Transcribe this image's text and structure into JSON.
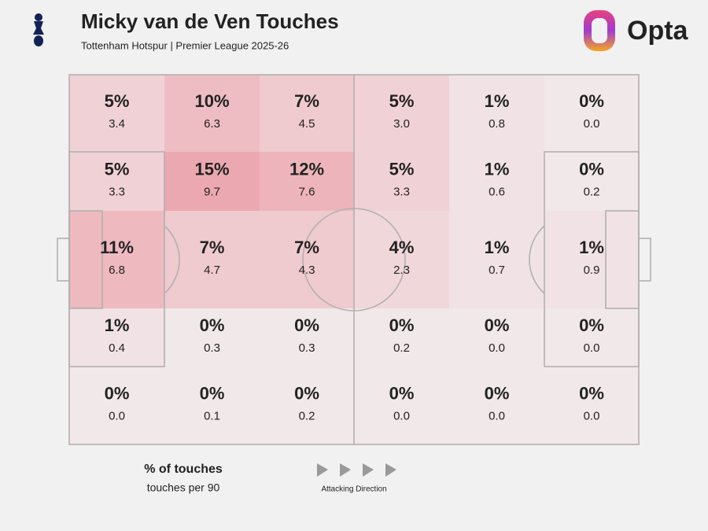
{
  "chart_data": {
    "type": "heatmap",
    "title": "Micky van de Ven Touches",
    "subtitle": "Tottenham Hotspur | Premier League 2025-26",
    "brand": "Opta",
    "color": "#e8707e",
    "values": [
      [
        5,
        10,
        7,
        5,
        1,
        0
      ],
      [
        5,
        15,
        12,
        5,
        1,
        0
      ],
      [
        11,
        7,
        7,
        4,
        1,
        1
      ],
      [
        1,
        0,
        0,
        0,
        0,
        0
      ],
      [
        0,
        0,
        0,
        0,
        0,
        0
      ]
    ],
    "value_labels": [
      [
        "5%",
        "10%",
        "7%",
        "5%",
        "1%",
        "0%"
      ],
      [
        "5%",
        "15%",
        "12%",
        "5%",
        "1%",
        "0%"
      ],
      [
        "11%",
        "7%",
        "7%",
        "4%",
        "1%",
        "1%"
      ],
      [
        "1%",
        "0%",
        "0%",
        "0%",
        "0%",
        "0%"
      ],
      [
        "0%",
        "0%",
        "0%",
        "0%",
        "0%",
        "0%"
      ]
    ],
    "per90": [
      [
        3.4,
        6.3,
        4.5,
        3.0,
        0.8,
        0.0
      ],
      [
        3.3,
        9.7,
        7.6,
        3.3,
        0.6,
        0.2
      ],
      [
        6.8,
        4.7,
        4.3,
        2.3,
        0.7,
        0.9
      ],
      [
        0.4,
        0.3,
        0.3,
        0.2,
        0.0,
        0.0
      ],
      [
        0.0,
        0.1,
        0.2,
        0.0,
        0.0,
        0.0
      ]
    ],
    "per90_labels": [
      [
        "3.4",
        "6.3",
        "4.5",
        "3.0",
        "0.8",
        "0.0"
      ],
      [
        "3.3",
        "9.7",
        "7.6",
        "3.3",
        "0.6",
        "0.2"
      ],
      [
        "6.8",
        "4.7",
        "4.3",
        "2.3",
        "0.7",
        "0.9"
      ],
      [
        "0.4",
        "0.3",
        "0.3",
        "0.2",
        "0.0",
        "0.0"
      ],
      [
        "0.0",
        "0.1",
        "0.2",
        "0.0",
        "0.0",
        "0.0"
      ]
    ],
    "legend_primary": "% of touches",
    "legend_secondary": "touches per 90",
    "direction_label": "Attacking Direction"
  }
}
